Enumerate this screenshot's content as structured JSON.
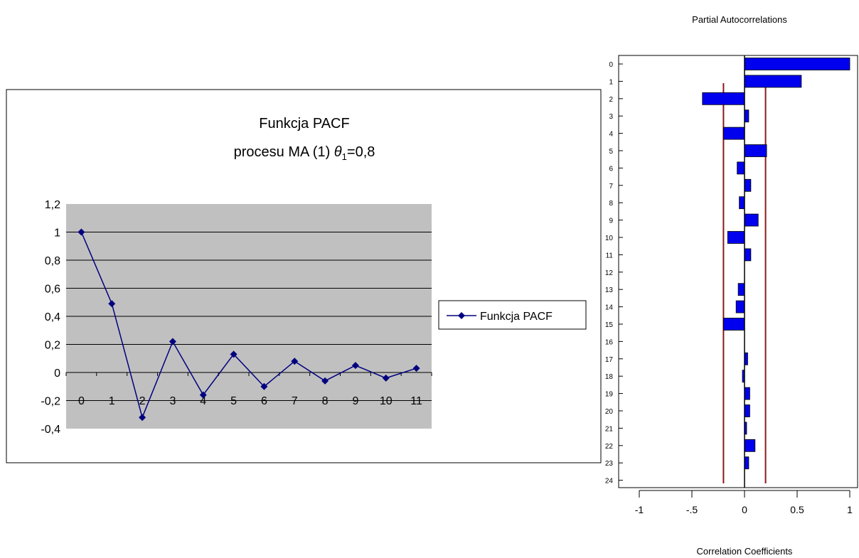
{
  "chart_data": [
    {
      "type": "line",
      "title_line1": "Funkcja PACF",
      "title_line2_prefix": "procesu MA (1) ",
      "title_theta_symbol": "θ",
      "title_theta_subscript": "1",
      "title_line2_suffix": "=0,8",
      "categories": [
        "0",
        "1",
        "2",
        "3",
        "4",
        "5",
        "6",
        "7",
        "8",
        "9",
        "10",
        "11"
      ],
      "series": [
        {
          "name": "Funkcja PACF",
          "values": [
            1.0,
            0.49,
            -0.32,
            0.22,
            -0.16,
            0.13,
            -0.1,
            0.08,
            -0.06,
            0.05,
            -0.04,
            0.03
          ]
        }
      ],
      "ylim": [
        -0.4,
        1.2
      ],
      "yticks": [
        "1,2",
        "1",
        "0,8",
        "0,6",
        "0,4",
        "0,2",
        "0",
        "-0,2",
        "-0,4"
      ],
      "ytick_values": [
        1.2,
        1.0,
        0.8,
        0.6,
        0.4,
        0.2,
        0.0,
        -0.2,
        -0.4
      ],
      "grid": true,
      "legend_position": "right",
      "colors": {
        "plot_bg": "#c0c0c0",
        "line": "#000080",
        "grid": "#000000"
      }
    },
    {
      "type": "bar",
      "orientation": "horizontal",
      "title": "Partial Autocorrelations",
      "xlabel": "Correlation Coefficients",
      "categories": [
        "0",
        "1",
        "2",
        "3",
        "4",
        "5",
        "6",
        "7",
        "8",
        "9",
        "10",
        "11",
        "12",
        "13",
        "14",
        "15",
        "16",
        "17",
        "18",
        "19",
        "20",
        "21",
        "22",
        "23",
        "24"
      ],
      "values": [
        1.0,
        0.54,
        -0.4,
        0.04,
        -0.2,
        0.21,
        -0.07,
        0.06,
        -0.05,
        0.13,
        -0.16,
        0.06,
        0.0,
        -0.06,
        -0.08,
        -0.2,
        0.0,
        0.03,
        -0.02,
        0.05,
        0.05,
        0.02,
        0.1,
        0.04,
        0.0
      ],
      "xlim": [
        -1.1,
        1.1
      ],
      "xticks": [
        "-1",
        "-.5",
        "0",
        "0.5",
        "1"
      ],
      "xtick_values": [
        -1,
        -0.5,
        0,
        0.5,
        1
      ],
      "confidence_limits": [
        -0.2,
        0.2
      ],
      "colors": {
        "bar": "#0000ee",
        "limit_line": "#8b1a1a"
      }
    }
  ]
}
